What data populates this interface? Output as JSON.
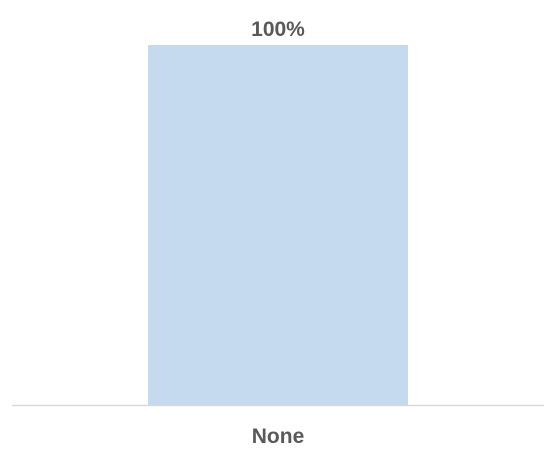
{
  "chart_data": {
    "type": "bar",
    "categories": [
      "None"
    ],
    "values": [
      100
    ],
    "value_labels": [
      "100%"
    ],
    "ylim": [
      0,
      100
    ],
    "grid": false,
    "legend": "none",
    "colors": {
      "bar": "#c5d9ef",
      "axis": "#d9d9d9",
      "text": "#595959"
    }
  }
}
